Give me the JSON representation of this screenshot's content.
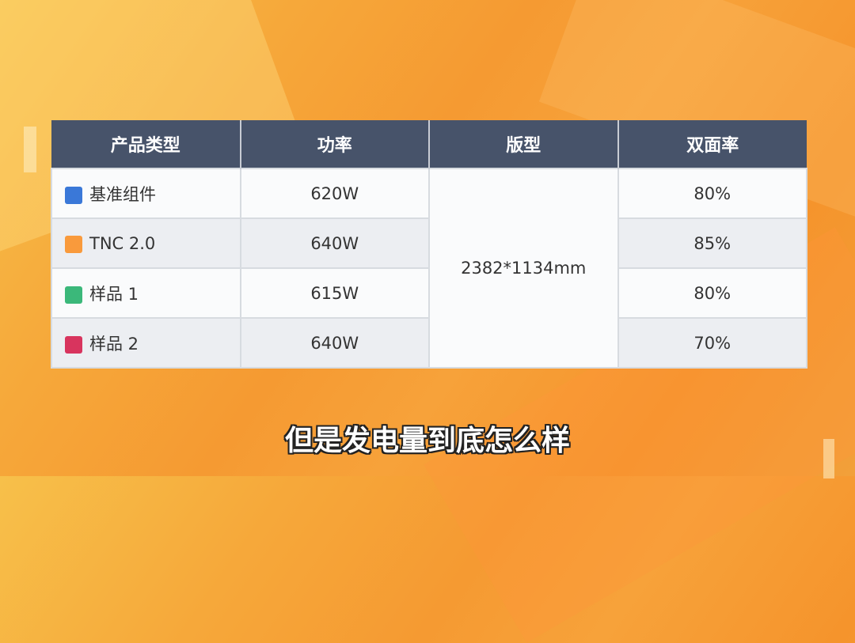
{
  "table": {
    "headers": [
      "产品类型",
      "功率",
      "版型",
      "双面率"
    ],
    "merged_size": "2382*1134mm",
    "rows": [
      {
        "name": "基准组件",
        "power": "620W",
        "bifaciality": "80%",
        "color": "#3a78d8"
      },
      {
        "name": "TNC 2.0",
        "power": "640W",
        "bifaciality": "85%",
        "color": "#f99a3c"
      },
      {
        "name": "样品 1",
        "power": "615W",
        "bifaciality": "80%",
        "color": "#3bb87a"
      },
      {
        "name": "样品 2",
        "power": "640W",
        "bifaciality": "70%",
        "color": "#d8345e"
      }
    ]
  },
  "subtitle": "但是发电量到底怎么样"
}
